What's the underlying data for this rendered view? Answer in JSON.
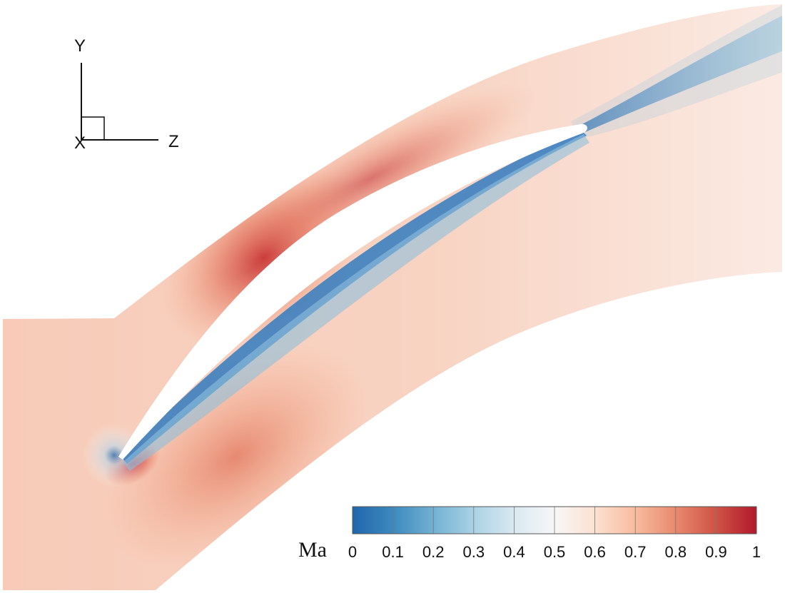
{
  "axes_triad": {
    "up": "Y",
    "right": "Z",
    "out": "X"
  },
  "colorbar": {
    "variable": "Ma",
    "min": 0,
    "max": 1,
    "ticks": [
      "0",
      "0.1",
      "0.2",
      "0.3",
      "0.4",
      "0.5",
      "0.6",
      "0.7",
      "0.8",
      "0.9",
      "1"
    ],
    "colors": [
      "#2166ac",
      "#4393c3",
      "#92c5de",
      "#d1e5f0",
      "#f7f7f7",
      "#fddbc7",
      "#f4a582",
      "#d6604d",
      "#b2182b"
    ]
  },
  "field": {
    "freestream_color": "#f9d9c9",
    "suction_peak_color": "#c93534",
    "wake_color": "#3b7fbf",
    "stagnation_color": "#2d6db0"
  }
}
